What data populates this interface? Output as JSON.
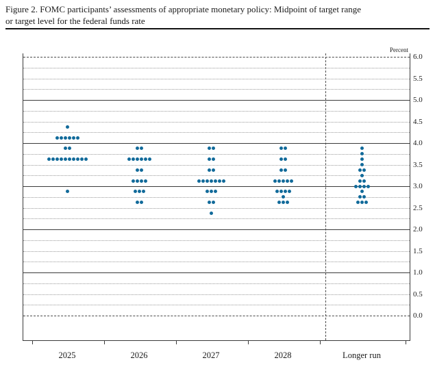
{
  "figure": {
    "title_lines": [
      "Figure 2. FOMC participants’ assessments of appropriate monetary policy: Midpoint of target range",
      "or target level for the federal funds rate"
    ]
  },
  "chart_data": {
    "type": "scatter",
    "subtype": "fomc-dot-plot",
    "title": "FOMC participants’ assessments of appropriate monetary policy: Midpoint of target range or target level for the federal funds rate",
    "unit_label": "Percent",
    "ylabel": "Percent",
    "xlabel": "",
    "ylim": [
      0.0,
      6.0
    ],
    "grid_step": 0.25,
    "label_step": 0.5,
    "ytick_labels": [
      "6.0",
      "5.5",
      "5.0",
      "4.5",
      "4.0",
      "3.5",
      "3.0",
      "2.5",
      "2.0",
      "1.5",
      "1.0",
      "0.5",
      "0.0"
    ],
    "solid_gridlines": [
      1.0,
      2.0,
      3.0,
      4.0,
      5.0
    ],
    "dashed_gridlines": [
      0.0,
      6.0
    ],
    "grid": "on",
    "legend": "none",
    "dot_color": "#116a9a",
    "categories": [
      "2025",
      "2026",
      "2027",
      "2028",
      "Longer run"
    ],
    "separator_before_category": "Longer run",
    "dot_distributions": [
      {
        "category": "2025",
        "dots": [
          {
            "rate": 4.375,
            "count": 1
          },
          {
            "rate": 4.125,
            "count": 6
          },
          {
            "rate": 3.875,
            "count": 2
          },
          {
            "rate": 3.625,
            "count": 10
          },
          {
            "rate": 2.875,
            "count": 1
          }
        ]
      },
      {
        "category": "2026",
        "dots": [
          {
            "rate": 3.875,
            "count": 2
          },
          {
            "rate": 3.625,
            "count": 6
          },
          {
            "rate": 3.375,
            "count": 2
          },
          {
            "rate": 3.125,
            "count": 4
          },
          {
            "rate": 2.875,
            "count": 3
          },
          {
            "rate": 2.625,
            "count": 2
          }
        ]
      },
      {
        "category": "2027",
        "dots": [
          {
            "rate": 3.875,
            "count": 2
          },
          {
            "rate": 3.625,
            "count": 2
          },
          {
            "rate": 3.375,
            "count": 2
          },
          {
            "rate": 3.125,
            "count": 7
          },
          {
            "rate": 2.875,
            "count": 3
          },
          {
            "rate": 2.625,
            "count": 2
          },
          {
            "rate": 2.375,
            "count": 1
          }
        ]
      },
      {
        "category": "2028",
        "dots": [
          {
            "rate": 3.875,
            "count": 2
          },
          {
            "rate": 3.625,
            "count": 2
          },
          {
            "rate": 3.375,
            "count": 2
          },
          {
            "rate": 3.125,
            "count": 5
          },
          {
            "rate": 2.875,
            "count": 4
          },
          {
            "rate": 2.75,
            "count": 1
          },
          {
            "rate": 2.625,
            "count": 3
          }
        ]
      },
      {
        "category": "Longer run",
        "dots": [
          {
            "rate": 3.875,
            "count": 1
          },
          {
            "rate": 3.75,
            "count": 1
          },
          {
            "rate": 3.625,
            "count": 1
          },
          {
            "rate": 3.5,
            "count": 1
          },
          {
            "rate": 3.375,
            "count": 2
          },
          {
            "rate": 3.25,
            "count": 1
          },
          {
            "rate": 3.125,
            "count": 2
          },
          {
            "rate": 3.0,
            "count": 4
          },
          {
            "rate": 2.875,
            "count": 1
          },
          {
            "rate": 2.75,
            "count": 2
          },
          {
            "rate": 2.625,
            "count": 3
          }
        ]
      }
    ]
  }
}
